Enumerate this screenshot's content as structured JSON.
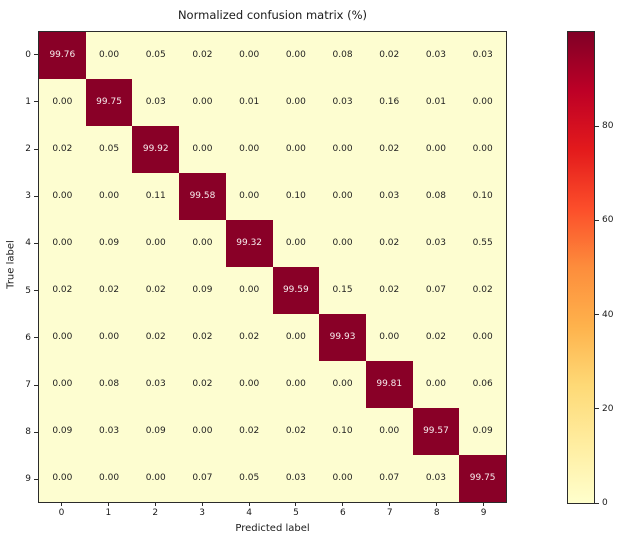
{
  "chart_data": {
    "type": "heatmap",
    "title": "Normalized confusion matrix (%)",
    "xlabel": "Predicted label",
    "ylabel": "True label",
    "x_tick_labels": [
      "0",
      "1",
      "2",
      "3",
      "4",
      "5",
      "6",
      "7",
      "8",
      "9"
    ],
    "y_tick_labels": [
      "0",
      "1",
      "2",
      "3",
      "4",
      "5",
      "6",
      "7",
      "8",
      "9"
    ],
    "matrix": [
      [
        99.76,
        0.0,
        0.05,
        0.02,
        0.0,
        0.0,
        0.08,
        0.02,
        0.03,
        0.03
      ],
      [
        0.0,
        99.75,
        0.03,
        0.0,
        0.01,
        0.0,
        0.03,
        0.16,
        0.01,
        0.0
      ],
      [
        0.02,
        0.05,
        99.92,
        0.0,
        0.0,
        0.0,
        0.0,
        0.02,
        0.0,
        0.0
      ],
      [
        0.0,
        0.0,
        0.11,
        99.58,
        0.0,
        0.1,
        0.0,
        0.03,
        0.08,
        0.1
      ],
      [
        0.0,
        0.09,
        0.0,
        0.0,
        99.32,
        0.0,
        0.0,
        0.02,
        0.03,
        0.55
      ],
      [
        0.02,
        0.02,
        0.02,
        0.09,
        0.0,
        99.59,
        0.15,
        0.02,
        0.07,
        0.02
      ],
      [
        0.0,
        0.0,
        0.02,
        0.02,
        0.02,
        0.0,
        99.93,
        0.0,
        0.02,
        0.0
      ],
      [
        0.0,
        0.08,
        0.03,
        0.02,
        0.0,
        0.0,
        0.0,
        99.81,
        0.0,
        0.06
      ],
      [
        0.09,
        0.03,
        0.09,
        0.0,
        0.02,
        0.02,
        0.1,
        0.0,
        99.57,
        0.09
      ],
      [
        0.0,
        0.0,
        0.0,
        0.07,
        0.05,
        0.03,
        0.0,
        0.07,
        0.03,
        99.75
      ]
    ],
    "value_decimals": 2,
    "colormap": "YlOrRd",
    "value_range": [
      0,
      100
    ],
    "grid": false,
    "legend_position": "none",
    "colorbar": {
      "position": "right",
      "ticks": [
        0,
        20,
        40,
        60,
        80
      ],
      "gradient_stops_bottom_to_top": [
        "#ffffcc",
        "#ffeda0",
        "#fed976",
        "#feb24c",
        "#fd8d3c",
        "#fc4e2a",
        "#e31a1c",
        "#bd0026",
        "#800026"
      ]
    },
    "colors": {
      "diagonal_cell": "#890027",
      "offdiag_cell": "#fdfdd0",
      "diagonal_text": "#f6eaec",
      "offdiag_text": "#1f1f1f",
      "axes_border": "#2b2b2b"
    }
  }
}
